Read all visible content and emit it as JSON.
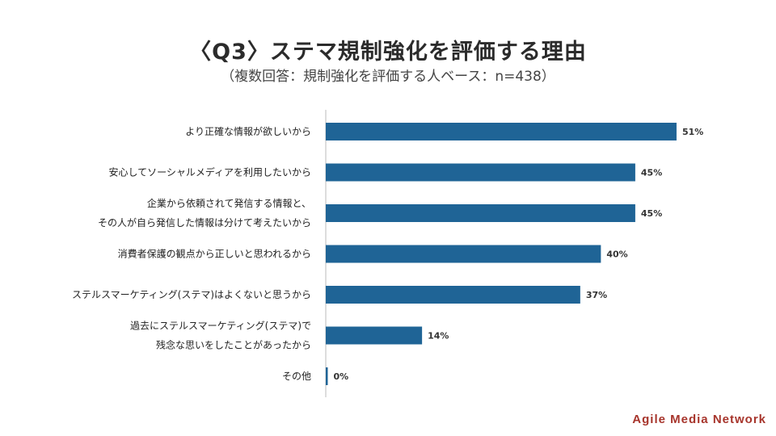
{
  "header": {
    "title": "〈Q3〉ステマ規制強化を評価する理由",
    "subtitle": "（複数回答：規制強化を評価する人ベース：n=438）"
  },
  "brand": {
    "name": "Agile Media Network",
    "color": "#a7352c"
  },
  "colors": {
    "bar": "#1f6496",
    "axis": "#bbbbbb"
  },
  "chart_data": {
    "type": "bar",
    "orientation": "horizontal",
    "title": "〈Q3〉ステマ規制強化を評価する理由",
    "subtitle": "（複数回答：規制強化を評価する人ベース：n=438）",
    "unit": "%",
    "grid": false,
    "legend": "none",
    "xlim": [
      0,
      55
    ],
    "categories": [
      [
        "より正確な情報が欲しいから"
      ],
      [
        "安心してソーシャルメディアを利用したいから"
      ],
      [
        "企業から依頼されて発信する情報と、",
        "その人が自ら発信した情報は分けて考えたいから"
      ],
      [
        "消費者保護の観点から正しいと思われるから"
      ],
      [
        "ステルスマーケティング(ステマ)はよくないと思うから"
      ],
      [
        "過去にステルスマーケティング(ステマ)で",
        "残念な思いをしたことがあったから"
      ],
      [
        "その他"
      ]
    ],
    "values": [
      51,
      45,
      45,
      40,
      37,
      14,
      0
    ],
    "data_labels": [
      "51%",
      "45%",
      "45%",
      "40%",
      "37%",
      "14%",
      "0%"
    ]
  }
}
